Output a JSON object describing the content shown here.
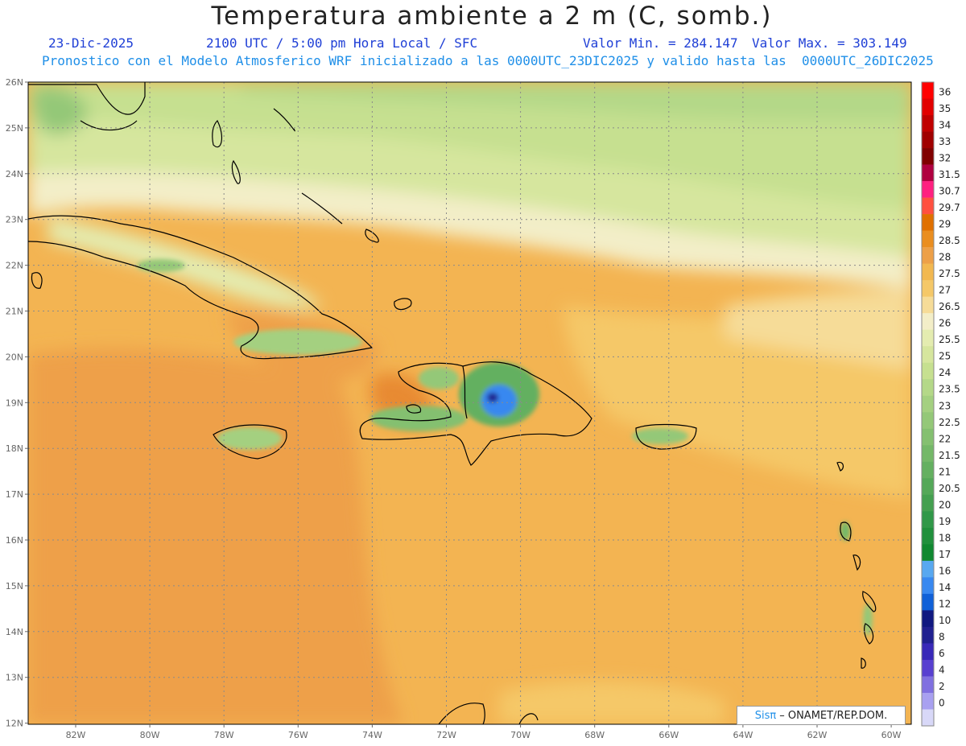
{
  "title": "Temperatura ambiente a 2 m (C, somb.)",
  "date": "23-Dic-2025",
  "time": "2100 UTC / 5:00 pm Hora Local / SFC",
  "vmin": "Valor Min. = 284.147",
  "vmax": "Valor Max. = 303.149",
  "forecast": "Pronostico con el Modelo Atmosferico WRF inicializado a las 0000UTC_23DIC2025 y valido hasta las  0000UTC_26DIC2025",
  "lat_labels": [
    "26N",
    "25N",
    "24N",
    "23N",
    "22N",
    "21N",
    "20N",
    "19N",
    "18N",
    "17N",
    "16N",
    "15N",
    "14N",
    "13N",
    "12N"
  ],
  "lon_labels": [
    "82W",
    "80W",
    "78W",
    "76W",
    "74W",
    "72W",
    "70W",
    "68W",
    "66W",
    "64W",
    "62W",
    "60W"
  ],
  "colorbar": {
    "labels": [
      "36",
      "35",
      "34",
      "33",
      "32",
      "31.5",
      "30.7",
      "29.7",
      "29",
      "28.5",
      "28",
      "27.5",
      "27",
      "26.5",
      "26",
      "25.5",
      "25",
      "24",
      "23.5",
      "23",
      "22.5",
      "22",
      "21.5",
      "21",
      "20.5",
      "20",
      "19",
      "18",
      "17",
      "16",
      "14",
      "12",
      "10",
      "8",
      "6",
      "4",
      "2",
      "0"
    ],
    "colors": [
      "#ff0000",
      "#e20000",
      "#c00000",
      "#a00000",
      "#800000",
      "#b00040",
      "#ff2080",
      "#ff5040",
      "#e07000",
      "#ea8e20",
      "#eda048",
      "#f2b850",
      "#f5c868",
      "#f6dc98",
      "#f3eec8",
      "#e4ecb0",
      "#d6e69e",
      "#c6e090",
      "#b4d888",
      "#a4d080",
      "#94c878",
      "#84c070",
      "#74b868",
      "#64b060",
      "#54a858",
      "#44a050",
      "#309848",
      "#20903c",
      "#108830",
      "#58a8f0",
      "#3888f0",
      "#1060d8",
      "#101880",
      "#202090",
      "#3828b8",
      "#5840d0",
      "#8070e0",
      "#a8a0f0",
      "#d8d8f8"
    ]
  },
  "credit": {
    "brand": "Sisπ",
    "text": "– ONAMET/REP.DOM."
  }
}
